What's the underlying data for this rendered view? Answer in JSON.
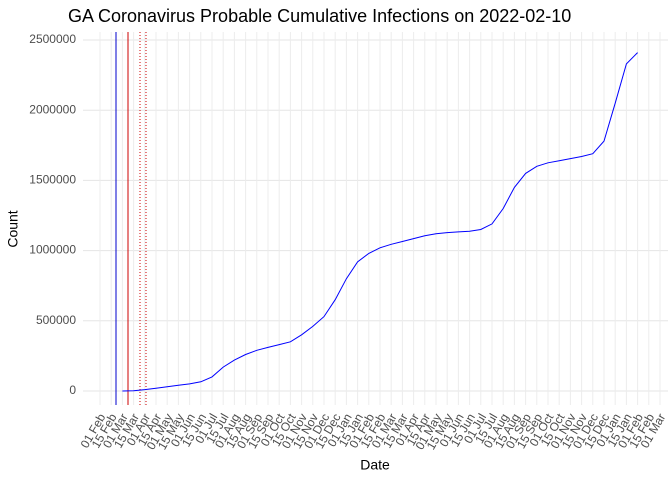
{
  "chart_data": {
    "type": "line",
    "title": "GA Coronavirus Probable Cumulative Infections on 2022-02-10",
    "x_label": "Date",
    "y_label": "Count",
    "categories": [
      "01 Feb",
      "15 Feb",
      "01 Mar",
      "15 Mar",
      "01 Apr",
      "15 Apr",
      "01 May",
      "15 May",
      "01 Jun",
      "15 Jun",
      "01 Jul",
      "15 Jul",
      "01 Aug",
      "15 Aug",
      "01 Sep",
      "15 Sep",
      "01 Oct",
      "15 Oct",
      "01 Nov",
      "15 Nov",
      "01 Dec",
      "15 Dec",
      "01 Jan",
      "15 Jan",
      "01 Feb",
      "15 Feb",
      "01 Mar",
      "15 Mar",
      "01 Apr",
      "15 Apr",
      "01 May",
      "15 May",
      "01 Jun",
      "15 Jun",
      "01 Jul",
      "15 Jul",
      "01 Aug",
      "15 Aug",
      "01 Sep",
      "15 Sep",
      "01 Oct",
      "15 Oct",
      "01 Nov",
      "15 Nov",
      "01 Dec",
      "15 Dec",
      "01 Jan",
      "15 Jan",
      "01 Feb",
      "15 Feb",
      "01 Mar"
    ],
    "series": [
      {
        "name": "Count",
        "color": "#0000ff",
        "values": [
          null,
          null,
          0,
          2000,
          10000,
          20000,
          30000,
          40000,
          50000,
          65000,
          100000,
          170000,
          220000,
          260000,
          290000,
          310000,
          330000,
          350000,
          400000,
          460000,
          530000,
          650000,
          800000,
          920000,
          980000,
          1020000,
          1045000,
          1065000,
          1085000,
          1105000,
          1120000,
          1128000,
          1133000,
          1138000,
          1150000,
          1190000,
          1300000,
          1450000,
          1550000,
          1600000,
          1625000,
          1640000,
          1655000,
          1670000,
          1690000,
          1780000,
          2050000,
          2330000,
          2410000,
          null,
          null
        ]
      }
    ],
    "ylim": [
      -100000,
      2557000
    ],
    "yticks": [
      0,
      500000,
      1000000,
      1500000,
      2000000,
      2500000
    ],
    "grid": true
  }
}
